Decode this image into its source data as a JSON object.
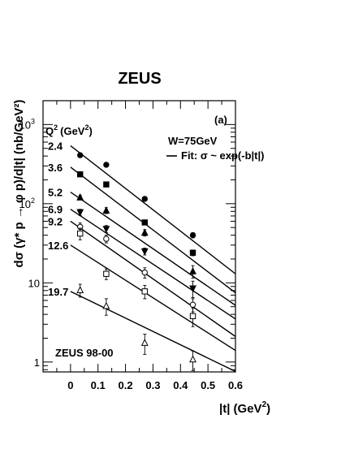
{
  "chart_data": {
    "type": "scatter",
    "title": "ZEUS",
    "panel_label": "(a)",
    "experiment_label": "ZEUS 98-00",
    "energy_label": "W=75GeV",
    "fit_legend": "Fit: σ ~ exp(-b|t|)",
    "q2_header_base": "Q",
    "q2_header_exp": "2",
    "q2_header_unit": "(GeV",
    "q2_header_unit_exp": "2",
    "q2_header_close": ")",
    "xlabel": "|t| (GeV",
    "xlabel_exp": "2",
    "xlabel_close": ")",
    "ylabel": "dσ (γ* p → φ p)/d|t| (nb/GeV²)",
    "xlim": [
      -0.1,
      0.6
    ],
    "ylim": [
      0.75,
      2000
    ],
    "y_scale": "log",
    "x_ticks": [
      {
        "value": 0,
        "label": "0"
      },
      {
        "value": 0.1,
        "label": "0.1"
      },
      {
        "value": 0.2,
        "label": "0.2"
      },
      {
        "value": 0.3,
        "label": "0.3"
      },
      {
        "value": 0.4,
        "label": "0.4"
      },
      {
        "value": 0.5,
        "label": "0.5"
      },
      {
        "value": 0.6,
        "label": "0.6"
      }
    ],
    "y_ticks": [
      {
        "value": 1,
        "base": "1",
        "exp": ""
      },
      {
        "value": 10,
        "base": "10",
        "exp": ""
      },
      {
        "value": 100,
        "base": "10",
        "exp": "2"
      },
      {
        "value": 1000,
        "base": "10",
        "exp": "3"
      }
    ],
    "series": [
      {
        "name": "2.4",
        "marker": "circle-filled",
        "points": [
          [
            0.035,
            410,
            14
          ],
          [
            0.13,
            310,
            14
          ],
          [
            0.27,
            115,
            6
          ],
          [
            0.445,
            40,
            3
          ]
        ],
        "fit": [
          [
            0.0,
            540
          ],
          [
            0.6,
            13
          ]
        ]
      },
      {
        "name": "3.6",
        "marker": "square-filled",
        "points": [
          [
            0.035,
            235,
            10
          ],
          [
            0.13,
            175,
            10
          ],
          [
            0.27,
            58,
            4
          ],
          [
            0.445,
            24,
            2
          ]
        ],
        "fit": [
          [
            0.0,
            290
          ],
          [
            0.6,
            7.5
          ]
        ]
      },
      {
        "name": "5.2",
        "marker": "triangle-up-filled",
        "points": [
          [
            0.035,
            120,
            8
          ],
          [
            0.13,
            82,
            7
          ],
          [
            0.27,
            43,
            4
          ],
          [
            0.445,
            14,
            2.5
          ]
        ],
        "fit": [
          [
            0.0,
            140
          ],
          [
            0.6,
            5.2
          ]
        ]
      },
      {
        "name": "6.9",
        "marker": "triangle-down-filled",
        "points": [
          [
            0.035,
            78,
            7
          ],
          [
            0.13,
            48,
            5
          ],
          [
            0.27,
            25,
            2.5
          ],
          [
            0.445,
            8.5,
            2
          ]
        ],
        "fit": [
          [
            0.0,
            85
          ],
          [
            0.6,
            3.5
          ]
        ]
      },
      {
        "name": "9.2",
        "marker": "circle-open",
        "points": [
          [
            0.035,
            51,
            6
          ],
          [
            0.13,
            36,
            4
          ],
          [
            0.27,
            13.5,
            2
          ],
          [
            0.445,
            5.3,
            1
          ]
        ],
        "fit": [
          [
            0.0,
            60
          ],
          [
            0.6,
            2.1
          ]
        ]
      },
      {
        "name": "12.6",
        "marker": "square-open",
        "points": [
          [
            0.035,
            42,
            7
          ],
          [
            0.13,
            13,
            2
          ],
          [
            0.27,
            7.8,
            1.5
          ],
          [
            0.445,
            3.8,
            1
          ]
        ],
        "fit": [
          [
            0.0,
            30
          ],
          [
            0.6,
            1.4
          ]
        ]
      },
      {
        "name": "19.7",
        "marker": "triangle-up-open",
        "points": [
          [
            0.035,
            8.1,
            1.5
          ],
          [
            0.13,
            5.1,
            1.2
          ],
          [
            0.27,
            1.75,
            0.5
          ],
          [
            0.445,
            1.08,
            0.3
          ]
        ],
        "fit": [
          [
            0.0,
            7.8
          ],
          [
            0.6,
            0.76
          ]
        ]
      }
    ]
  }
}
